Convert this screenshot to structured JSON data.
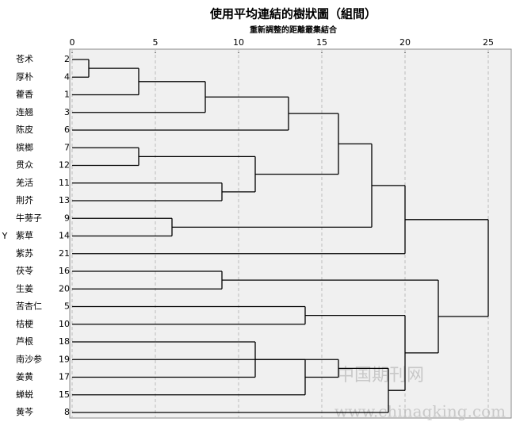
{
  "chart_data": {
    "type": "dendrogram",
    "title": "使用平均連結的樹狀圖（組間）",
    "subtitle": "重新調整的距離叢集結合",
    "y_label": "Y",
    "xlim": [
      0,
      25
    ],
    "xticks": [
      0,
      5,
      10,
      15,
      20,
      25
    ],
    "grid": true,
    "color": "#000000",
    "leaves": [
      {
        "name": "苍术",
        "id": 2
      },
      {
        "name": "厚朴",
        "id": 4
      },
      {
        "name": "藿香",
        "id": 1
      },
      {
        "name": "连翘",
        "id": 3
      },
      {
        "name": "陈皮",
        "id": 6
      },
      {
        "name": "槟榔",
        "id": 7
      },
      {
        "name": "贯众",
        "id": 12
      },
      {
        "name": "羌活",
        "id": 11
      },
      {
        "name": "荆芥",
        "id": 13
      },
      {
        "name": "牛蒡子",
        "id": 9
      },
      {
        "name": "紫草",
        "id": 14
      },
      {
        "name": "紫苏",
        "id": 21
      },
      {
        "name": "茯苓",
        "id": 16
      },
      {
        "name": "生姜",
        "id": 20
      },
      {
        "name": "苦杏仁",
        "id": 5
      },
      {
        "name": "桔梗",
        "id": 10
      },
      {
        "name": "芦根",
        "id": 18
      },
      {
        "name": "南沙参",
        "id": 19
      },
      {
        "name": "姜黄",
        "id": 17
      },
      {
        "name": "蝉蜕",
        "id": 15
      },
      {
        "name": "黄芩",
        "id": 8
      }
    ],
    "merges": [
      {
        "children": [
          0,
          1
        ],
        "height": 1
      },
      {
        "children": [
          21,
          2
        ],
        "height": 4
      },
      {
        "children": [
          22,
          3
        ],
        "height": 8
      },
      {
        "children": [
          23,
          4
        ],
        "height": 13
      },
      {
        "children": [
          5,
          6
        ],
        "height": 4
      },
      {
        "children": [
          7,
          8
        ],
        "height": 9
      },
      {
        "children": [
          25,
          26
        ],
        "height": 11
      },
      {
        "children": [
          9,
          10
        ],
        "height": 6
      },
      {
        "children": [
          24,
          27
        ],
        "height": 16
      },
      {
        "children": [
          29,
          28
        ],
        "height": 18
      },
      {
        "children": [
          30,
          11
        ],
        "height": 20
      },
      {
        "children": [
          12,
          13
        ],
        "height": 9
      },
      {
        "children": [
          14,
          15
        ],
        "height": 14
      },
      {
        "children": [
          16,
          18
        ],
        "height": 11
      },
      {
        "children": [
          17,
          19
        ],
        "height": 14
      },
      {
        "children": [
          34,
          35
        ],
        "height": 16
      },
      {
        "children": [
          36,
          20
        ],
        "height": 19
      },
      {
        "children": [
          33,
          37
        ],
        "height": 20
      },
      {
        "children": [
          32,
          38
        ],
        "height": 22
      },
      {
        "children": [
          31,
          39
        ],
        "height": 25
      }
    ],
    "watermark": [
      "中国期刊网",
      "www.chinaqking.com"
    ]
  }
}
